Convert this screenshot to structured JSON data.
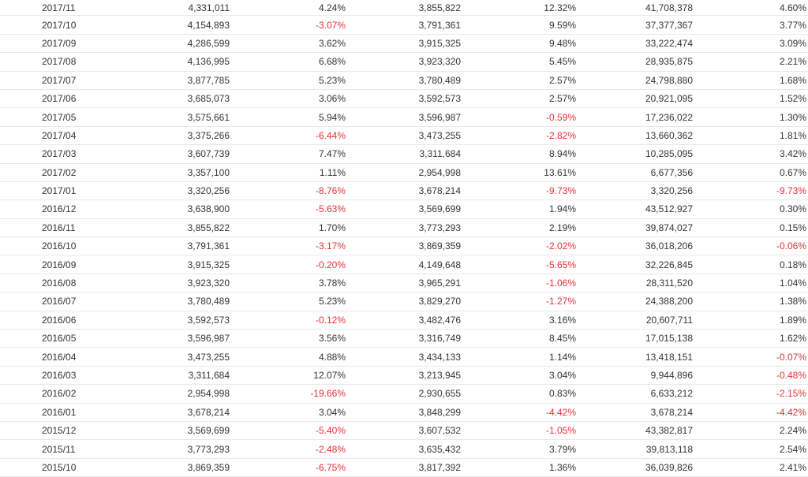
{
  "table": {
    "rows": [
      [
        "2017/11",
        "4,331,011",
        "4.24%",
        "3,855,822",
        "12.32%",
        "41,708,378",
        "4.60%"
      ],
      [
        "2017/10",
        "4,154,893",
        "-3.07%",
        "3,791,361",
        "9.59%",
        "37,377,367",
        "3.77%"
      ],
      [
        "2017/09",
        "4,286,599",
        "3.62%",
        "3,915,325",
        "9.48%",
        "33,222,474",
        "3.09%"
      ],
      [
        "2017/08",
        "4,136,995",
        "6.68%",
        "3,923,320",
        "5.45%",
        "28,935,875",
        "2.21%"
      ],
      [
        "2017/07",
        "3,877,785",
        "5.23%",
        "3,780,489",
        "2.57%",
        "24,798,880",
        "1.68%"
      ],
      [
        "2017/06",
        "3,685,073",
        "3.06%",
        "3,592,573",
        "2.57%",
        "20,921,095",
        "1.52%"
      ],
      [
        "2017/05",
        "3,575,661",
        "5.94%",
        "3,596,987",
        "-0.59%",
        "17,236,022",
        "1.30%"
      ],
      [
        "2017/04",
        "3,375,266",
        "-6.44%",
        "3,473,255",
        "-2.82%",
        "13,660,362",
        "1.81%"
      ],
      [
        "2017/03",
        "3,607,739",
        "7.47%",
        "3,311,684",
        "8.94%",
        "10,285,095",
        "3.42%"
      ],
      [
        "2017/02",
        "3,357,100",
        "1.11%",
        "2,954,998",
        "13.61%",
        "6,677,356",
        "0.67%"
      ],
      [
        "2017/01",
        "3,320,256",
        "-8.76%",
        "3,678,214",
        "-9.73%",
        "3,320,256",
        "-9.73%"
      ],
      [
        "2016/12",
        "3,638,900",
        "-5.63%",
        "3,569,699",
        "1.94%",
        "43,512,927",
        "0.30%"
      ],
      [
        "2016/11",
        "3,855,822",
        "1.70%",
        "3,773,293",
        "2.19%",
        "39,874,027",
        "0.15%"
      ],
      [
        "2016/10",
        "3,791,361",
        "-3.17%",
        "3,869,359",
        "-2.02%",
        "36,018,206",
        "-0.06%"
      ],
      [
        "2016/09",
        "3,915,325",
        "-0.20%",
        "4,149,648",
        "-5.65%",
        "32,226,845",
        "0.18%"
      ],
      [
        "2016/08",
        "3,923,320",
        "3.78%",
        "3,965,291",
        "-1.06%",
        "28,311,520",
        "1.04%"
      ],
      [
        "2016/07",
        "3,780,489",
        "5.23%",
        "3,829,270",
        "-1.27%",
        "24,388,200",
        "1.38%"
      ],
      [
        "2016/06",
        "3,592,573",
        "-0.12%",
        "3,482,476",
        "3.16%",
        "20,607,711",
        "1.89%"
      ],
      [
        "2016/05",
        "3,596,987",
        "3.56%",
        "3,316,749",
        "8.45%",
        "17,015,138",
        "1.62%"
      ],
      [
        "2016/04",
        "3,473,255",
        "4.88%",
        "3,434,133",
        "1.14%",
        "13,418,151",
        "-0.07%"
      ],
      [
        "2016/03",
        "3,311,684",
        "12.07%",
        "3,213,945",
        "3.04%",
        "9,944,896",
        "-0.48%"
      ],
      [
        "2016/02",
        "2,954,998",
        "-19.66%",
        "2,930,655",
        "0.83%",
        "6,633,212",
        "-2.15%"
      ],
      [
        "2016/01",
        "3,678,214",
        "3.04%",
        "3,848,299",
        "-4.42%",
        "3,678,214",
        "-4.42%"
      ],
      [
        "2015/12",
        "3,569,699",
        "-5.40%",
        "3,607,532",
        "-1.05%",
        "43,382,817",
        "2.24%"
      ],
      [
        "2015/11",
        "3,773,293",
        "-2.48%",
        "3,635,432",
        "3.79%",
        "39,813,118",
        "2.54%"
      ],
      [
        "2015/10",
        "3,869,359",
        "-6.75%",
        "3,817,392",
        "1.36%",
        "36,039,826",
        "2.41%"
      ]
    ],
    "negative_color": "#e8303a",
    "text_color": "#333333",
    "divider_color": "#e8e8e8"
  }
}
